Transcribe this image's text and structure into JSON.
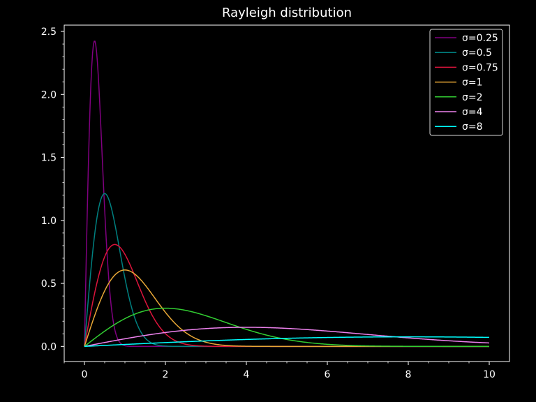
{
  "chart_data": {
    "type": "line",
    "title": "Rayleigh distribution",
    "xlabel": "",
    "ylabel": "",
    "xlim": [
      -0.5,
      10.5
    ],
    "ylim": [
      -0.12,
      2.55
    ],
    "xticks": [
      0,
      2,
      4,
      6,
      8,
      10
    ],
    "xtick_labels": [
      "0",
      "2",
      "4",
      "6",
      "8",
      "10"
    ],
    "yticks": [
      0.0,
      0.5,
      1.0,
      1.5,
      2.0,
      2.5
    ],
    "ytick_labels": [
      "0.0",
      "0.5",
      "1.0",
      "1.5",
      "2.0",
      "2.5"
    ],
    "grid": false,
    "legend_position": "top-right",
    "x_domain": [
      0,
      10
    ],
    "series": [
      {
        "name": "σ=0.25",
        "sigma": 0.25,
        "color": "#800080"
      },
      {
        "name": "σ=0.5",
        "sigma": 0.5,
        "color": "#008080"
      },
      {
        "name": "σ=0.75",
        "sigma": 0.75,
        "color": "#dc143c"
      },
      {
        "name": "σ=1",
        "sigma": 1,
        "color": "#e8a736"
      },
      {
        "name": "σ=2",
        "sigma": 2,
        "color": "#32cd32"
      },
      {
        "name": "σ=4",
        "sigma": 4,
        "color": "#ee82ee"
      },
      {
        "name": "σ=8",
        "sigma": 8,
        "color": "#00ffff"
      }
    ]
  }
}
